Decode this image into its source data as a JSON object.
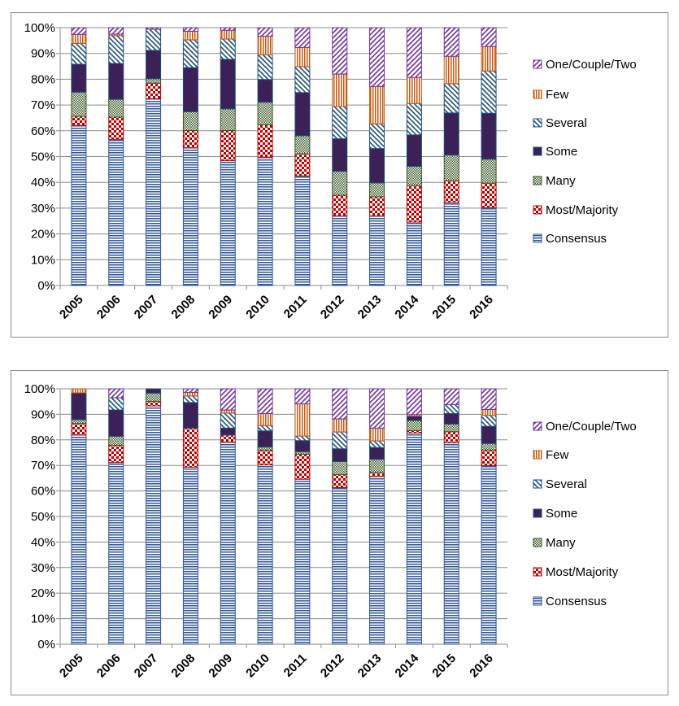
{
  "chart_data": [
    {
      "type": "bar",
      "stacked": true,
      "percent": true,
      "categories": [
        "2005",
        "2006",
        "2007",
        "2008",
        "2009",
        "2010",
        "2011",
        "2012",
        "2013",
        "2014",
        "2015",
        "2016"
      ],
      "ylim": [
        0,
        100
      ],
      "yticks": [
        "0%",
        "10%",
        "20%",
        "30%",
        "40%",
        "50%",
        "60%",
        "70%",
        "80%",
        "90%",
        "100%"
      ],
      "grid": true,
      "legend_position": "right",
      "series": [
        {
          "name": "Consensus",
          "pattern": "horizontal-lines",
          "color": "#2F5597",
          "values": [
            62.1,
            56.7,
            72.4,
            53.4,
            48.4,
            49.8,
            42.5,
            27.0,
            27.0,
            24.6,
            32.2,
            30.2
          ]
        },
        {
          "name": "Most/Majority",
          "pattern": "checker",
          "color": "#C00000",
          "values": [
            3.5,
            8.6,
            6.1,
            6.7,
            11.7,
            12.5,
            8.6,
            8.0,
            7.4,
            14.2,
            8.5,
            9.5
          ]
        },
        {
          "name": "Many",
          "pattern": "small-checker",
          "color": "#375623",
          "values": [
            9.4,
            6.9,
            1.7,
            7.3,
            8.4,
            8.8,
            7.0,
            9.3,
            5.4,
            7.4,
            9.9,
            9.3
          ]
        },
        {
          "name": "Some",
          "pattern": "solid",
          "color": "#3B2157",
          "values": [
            10.8,
            13.9,
            11.0,
            17.1,
            19.2,
            8.8,
            16.7,
            12.6,
            13.3,
            12.2,
            16.3,
            17.8
          ]
        },
        {
          "name": "Several",
          "pattern": "diagonal-dashes",
          "color": "#1F4E79",
          "values": [
            8.1,
            10.8,
            8.2,
            10.8,
            7.9,
            9.6,
            10.1,
            12.5,
            9.6,
            12.2,
            11.4,
            16.4
          ]
        },
        {
          "name": "Few",
          "pattern": "vertical-lines",
          "color": "#C55A11",
          "values": [
            3.5,
            0.6,
            0,
            3.3,
            3.4,
            7.2,
            7.4,
            12.6,
            14.5,
            10.1,
            10.6,
            9.5
          ]
        },
        {
          "name": "One/Couple/Two",
          "pattern": "diagonal-lines",
          "color": "#7030A0",
          "values": [
            2.6,
            2.5,
            0.6,
            1.4,
            1.0,
            3.3,
            7.7,
            18.0,
            22.8,
            19.3,
            11.1,
            7.3
          ]
        }
      ]
    },
    {
      "type": "bar",
      "stacked": true,
      "percent": true,
      "categories": [
        "2005",
        "2006",
        "2007",
        "2008",
        "2009",
        "2010",
        "2011",
        "2012",
        "2013",
        "2014",
        "2015",
        "2016"
      ],
      "ylim": [
        0,
        100
      ],
      "yticks": [
        "0%",
        "10%",
        "20%",
        "30%",
        "40%",
        "50%",
        "60%",
        "70%",
        "80%",
        "90%",
        "100%"
      ],
      "grid": true,
      "legend_position": "right",
      "series": [
        {
          "name": "Consensus",
          "pattern": "horizontal-lines",
          "color": "#2F5597",
          "values": [
            81.9,
            71.1,
            93.3,
            69.3,
            79.1,
            70.2,
            64.6,
            61.3,
            65.7,
            82.7,
            78.9,
            69.9
          ]
        },
        {
          "name": "Most/Majority",
          "pattern": "checker",
          "color": "#C00000",
          "values": [
            4.5,
            6.8,
            1.8,
            15.3,
            2.8,
            5.8,
            9.8,
            5.1,
            1.5,
            0.9,
            4.3,
            6.1
          ]
        },
        {
          "name": "Many",
          "pattern": "small-checker",
          "color": "#375623",
          "values": [
            1.5,
            3.5,
            3.2,
            0,
            0,
            1.2,
            1.0,
            5.1,
            5.2,
            4.0,
            3.0,
            2.6
          ]
        },
        {
          "name": "Some",
          "pattern": "solid",
          "color": "#3B2157",
          "values": [
            10.5,
            10.3,
            1.7,
            10.0,
            2.7,
            6.3,
            4.3,
            5.0,
            4.6,
            1.7,
            4.1,
            6.7
          ]
        },
        {
          "name": "Several",
          "pattern": "diagonal-dashes",
          "color": "#1F4E79",
          "values": [
            0,
            4.8,
            0,
            2.6,
            5.9,
            2.1,
            1.8,
            6.6,
            2.6,
            0,
            3.5,
            4.3
          ]
        },
        {
          "name": "Few",
          "pattern": "vertical-lines",
          "color": "#C55A11",
          "values": [
            1.6,
            0,
            0,
            1.4,
            1.2,
            4.7,
            12.6,
            5.1,
            5.0,
            0.6,
            0,
            2.3
          ]
        },
        {
          "name": "One/Couple/Two",
          "pattern": "diagonal-lines",
          "color": "#7030A0",
          "values": [
            0,
            3.5,
            0,
            1.4,
            8.3,
            9.7,
            5.9,
            11.8,
            15.4,
            10.1,
            6.2,
            8.1
          ]
        }
      ]
    }
  ]
}
